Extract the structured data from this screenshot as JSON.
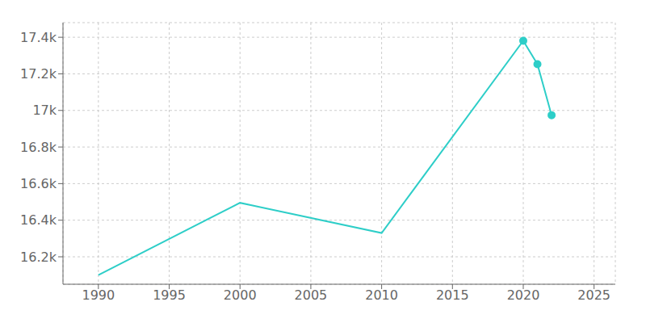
{
  "chart_data": {
    "type": "line",
    "x": [
      1990,
      2000,
      2010,
      2020,
      2021,
      2022
    ],
    "series": [
      {
        "color": "#2ecec8",
        "values": [
          16100,
          16495,
          16330,
          17381,
          17253,
          16974
        ],
        "marker": "none",
        "line_style": "solid"
      },
      {
        "color": "#2ecec8",
        "values": [
          null,
          null,
          null,
          17381,
          17253,
          16974
        ],
        "marker": "circle",
        "line_style": "none"
      }
    ],
    "xlim": [
      1987.5,
      2026.5
    ],
    "ylim": [
      16050,
      17480
    ],
    "xticks": [
      1990,
      1995,
      2000,
      2005,
      2010,
      2015,
      2020,
      2025
    ],
    "yticks": [
      {
        "value": 16200,
        "label": "16.2k"
      },
      {
        "value": 16400,
        "label": "16.4k"
      },
      {
        "value": 16600,
        "label": "16.6k"
      },
      {
        "value": 16800,
        "label": "16.8k"
      },
      {
        "value": 17000,
        "label": "17k"
      },
      {
        "value": 17200,
        "label": "17.2k"
      },
      {
        "value": 17400,
        "label": "17.4k"
      }
    ],
    "grid": true
  }
}
